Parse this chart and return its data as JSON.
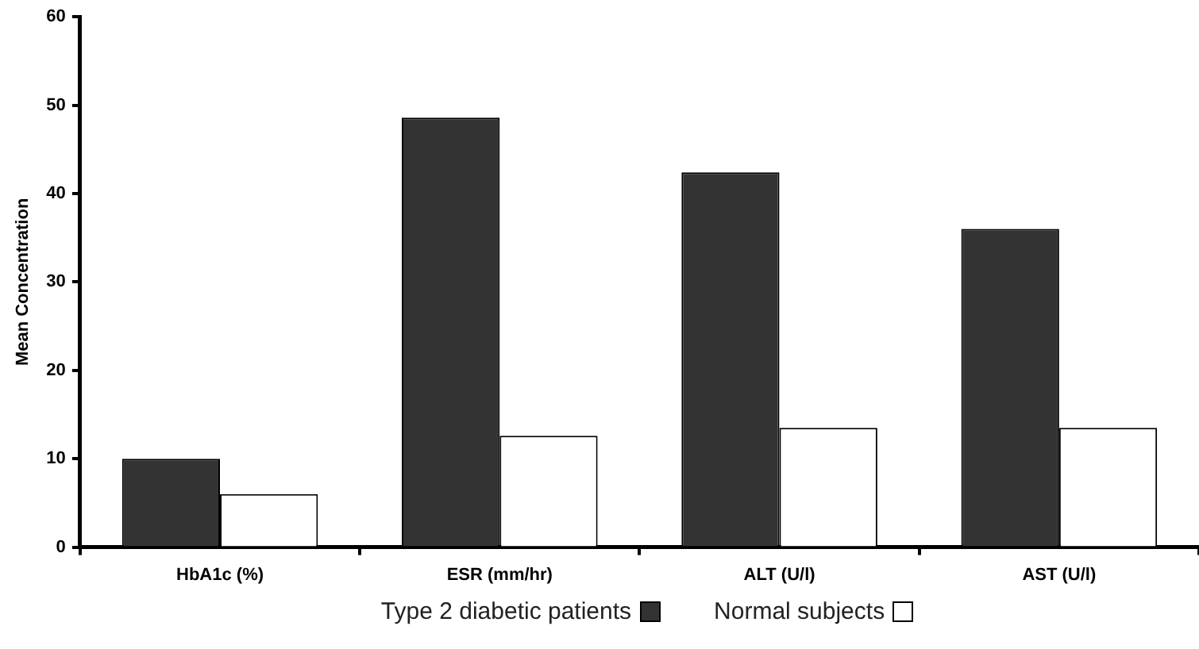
{
  "chart_data": {
    "type": "bar",
    "ylabel": "Mean Concentration",
    "categories": [
      "HbA1c (%)",
      "ESR (mm/hr)",
      "ALT (U/l)",
      "AST (U/l)"
    ],
    "series": [
      {
        "name": "Type 2 diabetic patients",
        "color": "#333333",
        "values": [
          10,
          48.6,
          42.4,
          36
        ]
      },
      {
        "name": "Normal subjects",
        "color": "#ffffff",
        "values": [
          6,
          12.6,
          13.5,
          13.5
        ]
      }
    ],
    "ylim": [
      0,
      60
    ],
    "yticks": [
      0,
      10,
      20,
      30,
      40,
      50,
      60
    ],
    "grid": false,
    "legend": "bottom"
  }
}
